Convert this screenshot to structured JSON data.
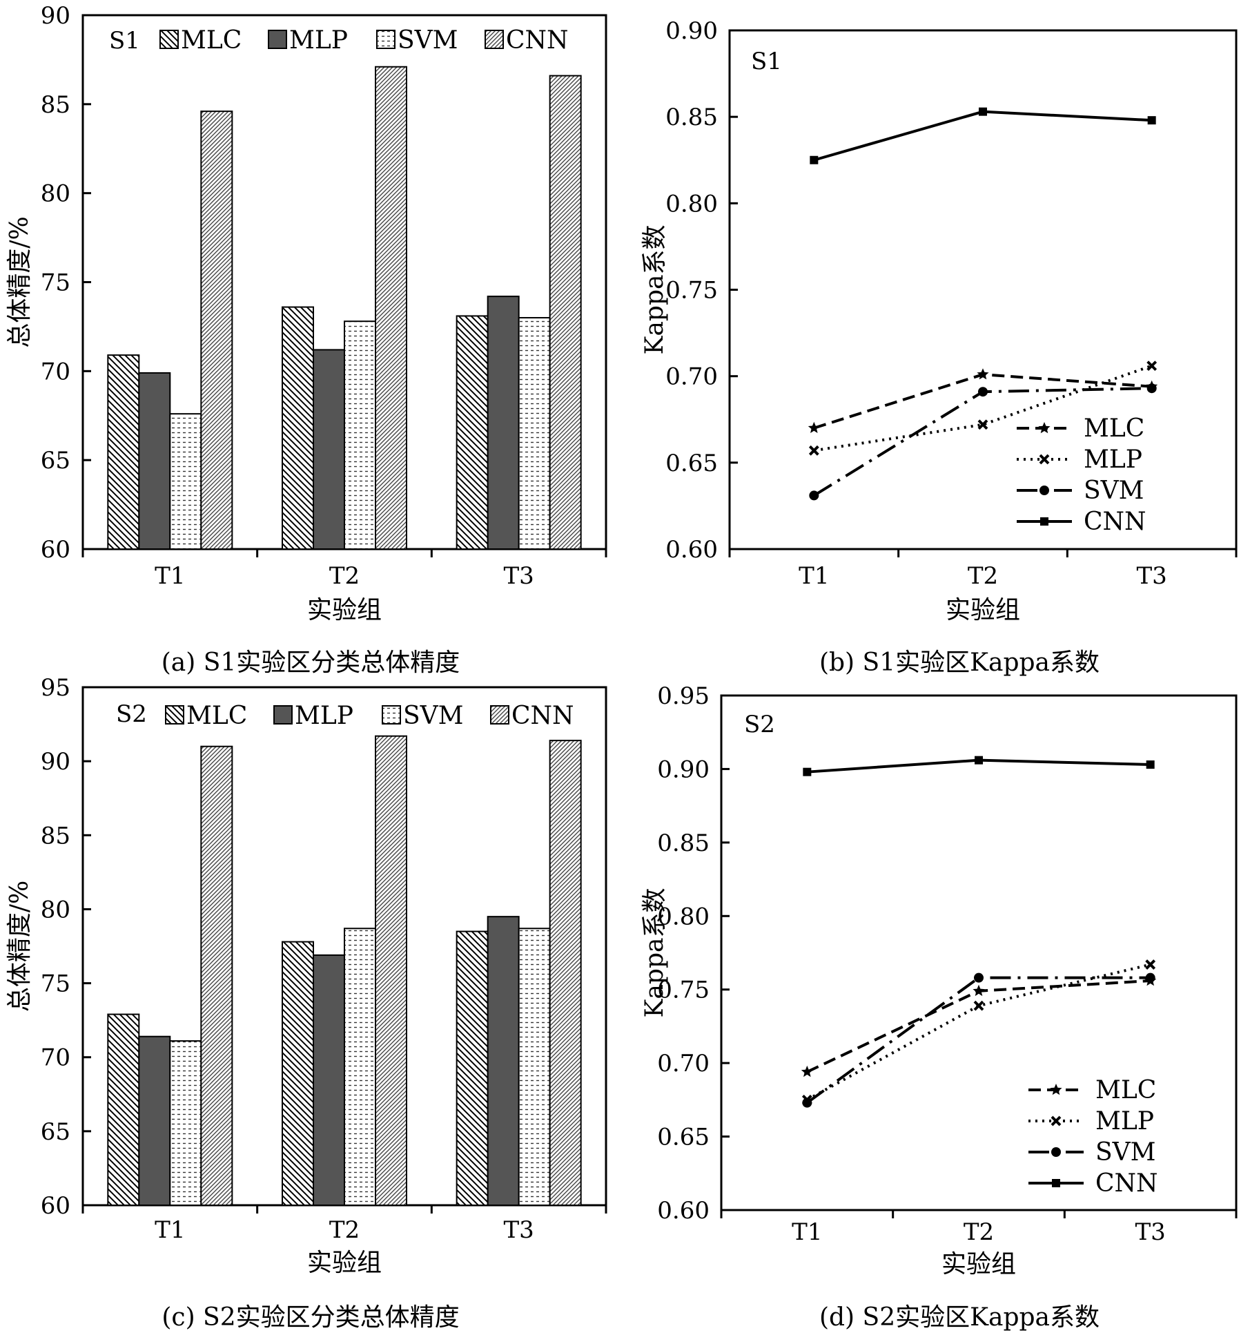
{
  "chart_data": [
    {
      "id": "a",
      "type": "bar",
      "panel_label": "S1",
      "caption": "(a) S1实验区分类总体精度",
      "xlabel": "实验组",
      "ylabel": "总体精度/%",
      "categories": [
        "T1",
        "T2",
        "T3"
      ],
      "ylim": [
        60,
        90
      ],
      "yticks": [
        60,
        65,
        70,
        75,
        80,
        85,
        90
      ],
      "legend_position": "top",
      "series": [
        {
          "name": "MLC",
          "pattern": "hatch-back",
          "values": [
            70.9,
            73.6,
            73.1
          ]
        },
        {
          "name": "MLP",
          "pattern": "dark",
          "values": [
            69.9,
            71.2,
            74.2
          ]
        },
        {
          "name": "SVM",
          "pattern": "dots",
          "values": [
            67.6,
            72.8,
            73.0
          ]
        },
        {
          "name": "CNN",
          "pattern": "hatch-fwd",
          "values": [
            84.6,
            87.1,
            86.6
          ]
        }
      ]
    },
    {
      "id": "b",
      "type": "line",
      "panel_label": "S1",
      "caption": "(b) S1实验区Kappa系数",
      "xlabel": "实验组",
      "ylabel": "Kappa系数",
      "categories": [
        "T1",
        "T2",
        "T3"
      ],
      "ylim": [
        0.6,
        0.9
      ],
      "yticks": [
        "0.60",
        "0.65",
        "0.70",
        "0.75",
        "0.80",
        "0.85",
        "0.90"
      ],
      "legend_position": "bottom-right",
      "series": [
        {
          "name": "MLC",
          "dash": "dash",
          "marker": "star",
          "values": [
            0.67,
            0.701,
            0.694
          ]
        },
        {
          "name": "MLP",
          "dash": "dot",
          "marker": "x",
          "values": [
            0.657,
            0.672,
            0.706
          ]
        },
        {
          "name": "SVM",
          "dash": "dashdot",
          "marker": "circle",
          "values": [
            0.631,
            0.691,
            0.693
          ]
        },
        {
          "name": "CNN",
          "dash": "solid",
          "marker": "square",
          "values": [
            0.825,
            0.853,
            0.848
          ]
        }
      ]
    },
    {
      "id": "c",
      "type": "bar",
      "panel_label": "S2",
      "caption": "(c) S2实验区分类总体精度",
      "xlabel": "实验组",
      "ylabel": "总体精度/%",
      "categories": [
        "T1",
        "T2",
        "T3"
      ],
      "ylim": [
        60,
        95
      ],
      "yticks": [
        60,
        65,
        70,
        75,
        80,
        85,
        90,
        95
      ],
      "legend_position": "top",
      "series": [
        {
          "name": "MLC",
          "pattern": "hatch-back",
          "values": [
            72.9,
            77.8,
            78.5
          ]
        },
        {
          "name": "MLP",
          "pattern": "dark",
          "values": [
            71.4,
            76.9,
            79.5
          ]
        },
        {
          "name": "SVM",
          "pattern": "dots",
          "values": [
            71.1,
            78.7,
            78.7
          ]
        },
        {
          "name": "CNN",
          "pattern": "hatch-fwd",
          "values": [
            91.0,
            91.7,
            91.4
          ]
        }
      ]
    },
    {
      "id": "d",
      "type": "line",
      "panel_label": "S2",
      "caption": "(d) S2实验区Kappa系数",
      "xlabel": "实验组",
      "ylabel": "Kappa系数",
      "categories": [
        "T1",
        "T2",
        "T3"
      ],
      "ylim": [
        0.6,
        0.95
      ],
      "yticks": [
        "0.60",
        "0.65",
        "0.70",
        "0.75",
        "0.80",
        "0.85",
        "0.90",
        "0.95"
      ],
      "legend_position": "bottom-right",
      "series": [
        {
          "name": "MLC",
          "dash": "dash",
          "marker": "star",
          "values": [
            0.694,
            0.749,
            0.756
          ]
        },
        {
          "name": "MLP",
          "dash": "dot",
          "marker": "x",
          "values": [
            0.675,
            0.739,
            0.767
          ]
        },
        {
          "name": "SVM",
          "dash": "dashdot",
          "marker": "circle",
          "values": [
            0.673,
            0.758,
            0.758
          ]
        },
        {
          "name": "CNN",
          "dash": "solid",
          "marker": "square",
          "values": [
            0.898,
            0.906,
            0.903
          ]
        }
      ]
    }
  ]
}
